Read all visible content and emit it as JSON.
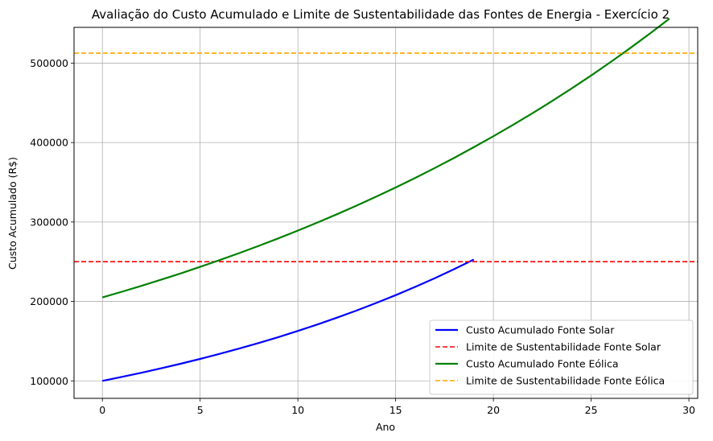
{
  "chart_data": {
    "type": "line",
    "title": "Avaliação do Custo Acumulado e Limite de Sustentabilidade das Fontes de Energia - Exercício 2",
    "xlabel": "Ano",
    "ylabel": "Custo Acumulado (R$)",
    "xlim": [
      -1.45,
      30.45
    ],
    "ylim": [
      78000,
      545000
    ],
    "xticks": [
      0,
      5,
      10,
      15,
      20,
      25,
      30
    ],
    "yticks": [
      100000,
      200000,
      300000,
      400000,
      500000
    ],
    "grid": true,
    "legend_position": "lower-right",
    "series": [
      {
        "name": "Custo Acumulado Fonte Solar",
        "style": "solid",
        "color": "#0000ff",
        "x": [
          0,
          1,
          2,
          3,
          4,
          5,
          6,
          7,
          8,
          9,
          10,
          11,
          12,
          13,
          14,
          15,
          16,
          17,
          18,
          19
        ],
        "values": [
          100000,
          105000,
          110250,
          115763,
          121551,
          127628,
          134010,
          140710,
          147746,
          155133,
          162889,
          171034,
          179586,
          188565,
          197993,
          207893,
          218287,
          229202,
          240662,
          252695
        ]
      },
      {
        "name": "Limite de Sustentabilidade Fonte Solar",
        "style": "dashed",
        "color": "#ff0000",
        "hline": 250000
      },
      {
        "name": "Custo Acumulado Fonte Eólica",
        "style": "solid",
        "color": "#008000",
        "x": [
          0,
          1,
          2,
          3,
          4,
          5,
          6,
          7,
          8,
          9,
          10,
          11,
          12,
          13,
          14,
          15,
          16,
          17,
          18,
          19,
          20,
          21,
          22,
          23,
          24,
          25,
          26,
          27,
          28,
          29
        ],
        "values": [
          205000,
          212175,
          219601,
          227287,
          235242,
          243477,
          251998,
          260818,
          269947,
          279395,
          289174,
          299295,
          309770,
          320612,
          331833,
          343448,
          355468,
          367910,
          380787,
          394114,
          407908,
          422185,
          436961,
          452255,
          468084,
          484466,
          501423,
          518973,
          537137,
          555937
        ]
      },
      {
        "name": "Limite de Sustentabilidade Fonte Eólica",
        "style": "dashed",
        "color": "#ffa500",
        "hline": 512500
      }
    ]
  }
}
